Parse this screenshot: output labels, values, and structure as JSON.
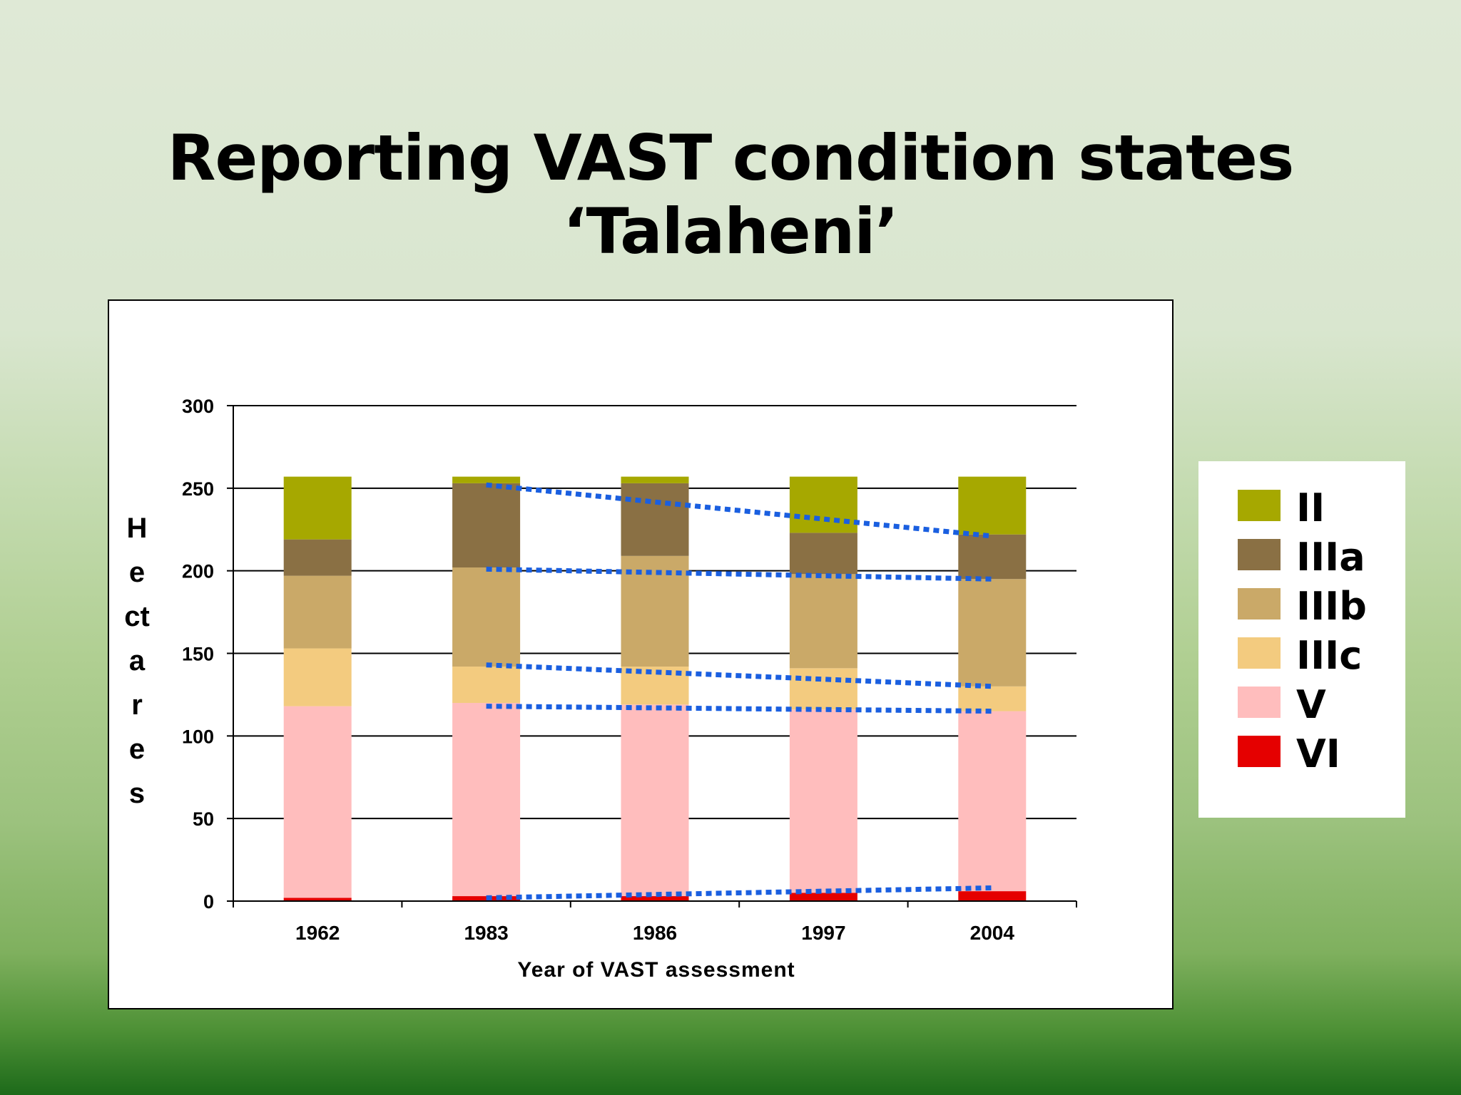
{
  "slide": {
    "title": "Reporting VAST condition states ‘Talaheni’"
  },
  "chart_data": {
    "type": "bar",
    "stacked": true,
    "xlabel": "Year of VAST assessment",
    "ylabel": "Hectares",
    "ylim": [
      0,
      300
    ],
    "yticks": [
      0,
      50,
      100,
      150,
      200,
      250,
      300
    ],
    "categories": [
      "1962",
      "1983",
      "1986",
      "1997",
      "2004"
    ],
    "grid": true,
    "legend_position": "right",
    "series": [
      {
        "name": "VI",
        "color": "#e50000",
        "values": [
          2,
          3,
          3,
          5,
          6
        ]
      },
      {
        "name": "V",
        "color": "#ffbdbd",
        "values": [
          116,
          117,
          116,
          111,
          109
        ]
      },
      {
        "name": "IIIc",
        "color": "#f3cb7f",
        "values": [
          35,
          22,
          23,
          25,
          15
        ]
      },
      {
        "name": "IIIb",
        "color": "#caa968",
        "values": [
          44,
          60,
          67,
          57,
          65
        ]
      },
      {
        "name": "IIIa",
        "color": "#8a7044",
        "values": [
          22,
          51,
          44,
          25,
          27
        ]
      },
      {
        "name": "II",
        "color": "#a6a800",
        "values": [
          38,
          4,
          4,
          34,
          35
        ]
      }
    ],
    "trend_lines": [
      {
        "from": [
          "1983",
          252
        ],
        "to": [
          "2004",
          221
        ]
      },
      {
        "from": [
          "1983",
          201
        ],
        "to": [
          "2004",
          195
        ]
      },
      {
        "from": [
          "1983",
          143
        ],
        "to": [
          "2004",
          130
        ]
      },
      {
        "from": [
          "1983",
          118
        ],
        "to": [
          "2004",
          115
        ]
      },
      {
        "from": [
          "1983",
          2
        ],
        "to": [
          "2004",
          8
        ]
      }
    ],
    "trend_line_color": "#1a5fe0"
  }
}
